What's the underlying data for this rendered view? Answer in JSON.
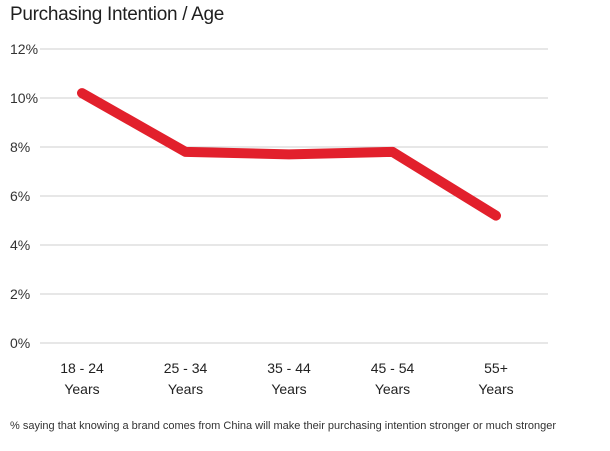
{
  "chart_data": {
    "type": "line",
    "title": "Purchasing Intention / Age",
    "categories": [
      "18 - 24 Years",
      "25 - 34 Years",
      "35 - 44 Years",
      "45 - 54 Years",
      "55+ Years"
    ],
    "category_lines": [
      [
        "18 - 24",
        "Years"
      ],
      [
        "25 - 34",
        "Years"
      ],
      [
        "35 - 44",
        "Years"
      ],
      [
        "45 - 54",
        "Years"
      ],
      [
        "55+",
        "Years"
      ]
    ],
    "series": [
      {
        "values": [
          10.2,
          7.8,
          7.7,
          7.8,
          5.2
        ],
        "color": "#e2202c"
      }
    ],
    "yticks": [
      "0%",
      "2%",
      "4%",
      "6%",
      "8%",
      "10%",
      "12%"
    ],
    "ylim": [
      0,
      12
    ],
    "grid": true,
    "footnote": "% saying that knowing a brand comes from China will make their purchasing intention stronger or much stronger"
  }
}
